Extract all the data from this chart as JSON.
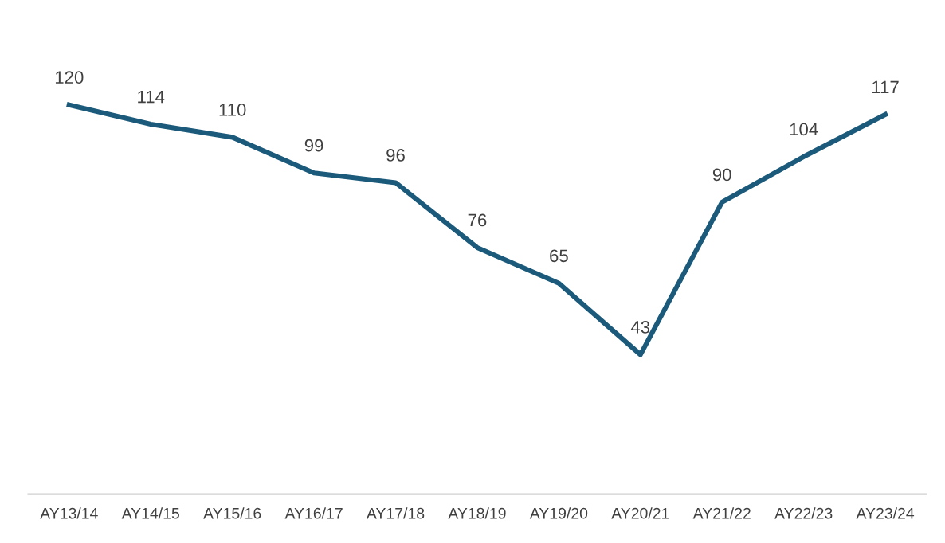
{
  "chart_data": {
    "type": "line",
    "categories": [
      "AY13/14",
      "AY14/15",
      "AY15/16",
      "AY16/17",
      "AY17/18",
      "AY18/19",
      "AY19/20",
      "AY20/21",
      "AY21/22",
      "AY22/23",
      "AY23/24"
    ],
    "series": [
      {
        "color": "#1b5a7a",
        "values": [
          120,
          114,
          110,
          99,
          96,
          76,
          65,
          43,
          90,
          104,
          117
        ]
      }
    ],
    "data_labels": true,
    "grid": false,
    "legend": false,
    "marker": "none",
    "line_style": "solid",
    "tick_labels": "x"
  }
}
